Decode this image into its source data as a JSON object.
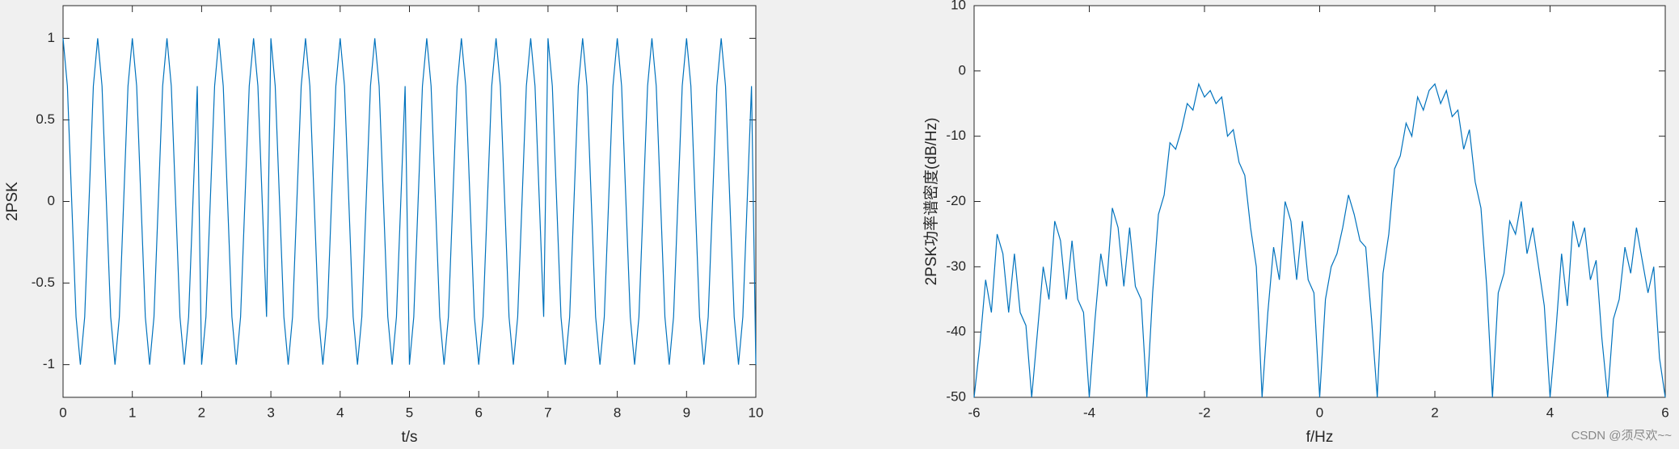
{
  "chart_data": [
    {
      "type": "line",
      "xlabel": "t/s",
      "ylabel": "2PSK",
      "color": "#0072bd",
      "xlim": [
        0,
        10
      ],
      "ylim": [
        -1.2,
        1.2
      ],
      "xticks": [
        0,
        1,
        2,
        3,
        4,
        5,
        6,
        7,
        8,
        9,
        10
      ],
      "yticks": [
        -1,
        -0.5,
        0,
        0.5,
        1
      ],
      "x": [
        0,
        0.0625,
        0.125,
        0.1875,
        0.25,
        0.3125,
        0.375,
        0.4375,
        0.5,
        0.5625,
        0.625,
        0.6875,
        0.75,
        0.8125,
        0.875,
        0.9375,
        1,
        1.0625,
        1.125,
        1.1875,
        1.25,
        1.3125,
        1.375,
        1.4375,
        1.5,
        1.5625,
        1.625,
        1.6875,
        1.75,
        1.8125,
        1.875,
        1.9375,
        2,
        2.0625,
        2.125,
        2.1875,
        2.25,
        2.3125,
        2.375,
        2.4375,
        2.5,
        2.5625,
        2.625,
        2.6875,
        2.75,
        2.8125,
        2.875,
        2.9375,
        3,
        3.0625,
        3.125,
        3.1875,
        3.25,
        3.3125,
        3.375,
        3.4375,
        3.5,
        3.5625,
        3.625,
        3.6875,
        3.75,
        3.8125,
        3.875,
        3.9375,
        4,
        4.0625,
        4.125,
        4.1875,
        4.25,
        4.3125,
        4.375,
        4.4375,
        4.5,
        4.5625,
        4.625,
        4.6875,
        4.75,
        4.8125,
        4.875,
        4.9375,
        5,
        5.0625,
        5.125,
        5.1875,
        5.25,
        5.3125,
        5.375,
        5.4375,
        5.5,
        5.5625,
        5.625,
        5.6875,
        5.75,
        5.8125,
        5.875,
        5.9375,
        6,
        6.0625,
        6.125,
        6.1875,
        6.25,
        6.3125,
        6.375,
        6.4375,
        6.5,
        6.5625,
        6.625,
        6.6875,
        6.75,
        6.8125,
        6.875,
        6.9375,
        7,
        7.0625,
        7.125,
        7.1875,
        7.25,
        7.3125,
        7.375,
        7.4375,
        7.5,
        7.5625,
        7.625,
        7.6875,
        7.75,
        7.8125,
        7.875,
        7.9375,
        8,
        8.0625,
        8.125,
        8.1875,
        8.25,
        8.3125,
        8.375,
        8.4375,
        8.5,
        8.5625,
        8.625,
        8.6875,
        8.75,
        8.8125,
        8.875,
        8.9375,
        9,
        9.0625,
        9.125,
        9.1875,
        9.25,
        9.3125,
        9.375,
        9.4375,
        9.5,
        9.5625,
        9.625,
        9.6875,
        9.75,
        9.8125,
        9.875,
        9.9375,
        10
      ],
      "values": [
        1,
        0.707,
        0,
        -0.707,
        -1,
        -0.707,
        0,
        0.707,
        1,
        0.707,
        0,
        -0.707,
        -1,
        -0.707,
        0,
        0.707,
        1,
        0.707,
        0,
        -0.707,
        -1,
        -0.707,
        0,
        0.707,
        1,
        0.707,
        0,
        -0.707,
        -1,
        -0.707,
        0,
        0.707,
        -1,
        -0.707,
        0,
        0.707,
        1,
        0.707,
        0,
        -0.707,
        -1,
        -0.707,
        0,
        0.707,
        1,
        0.707,
        0,
        -0.707,
        1,
        0.707,
        0,
        -0.707,
        -1,
        -0.707,
        0,
        0.707,
        1,
        0.707,
        0,
        -0.707,
        -1,
        -0.707,
        0,
        0.707,
        1,
        0.707,
        0,
        -0.707,
        -1,
        -0.707,
        0,
        0.707,
        1,
        0.707,
        0,
        -0.707,
        -1,
        -0.707,
        0,
        0.707,
        -1,
        -0.707,
        0,
        0.707,
        1,
        0.707,
        0,
        -0.707,
        -1,
        -0.707,
        0,
        0.707,
        1,
        0.707,
        0,
        -0.707,
        -1,
        -0.707,
        0,
        0.707,
        1,
        0.707,
        0,
        -0.707,
        -1,
        -0.707,
        0,
        0.707,
        1,
        0.707,
        0,
        -0.707,
        1,
        0.707,
        0,
        -0.707,
        -1,
        -0.707,
        0,
        0.707,
        1,
        0.707,
        0,
        -0.707,
        -1,
        -0.707,
        0,
        0.707,
        1,
        0.707,
        0,
        -0.707,
        -1,
        -0.707,
        0,
        0.707,
        1,
        0.707,
        0,
        -0.707,
        -1,
        -0.707,
        0,
        0.707,
        1,
        0.707,
        0,
        -0.707,
        -1,
        -0.707,
        0,
        0.707,
        1,
        0.707,
        0,
        -0.707,
        -1,
        -0.707,
        0,
        0.707,
        -1
      ]
    },
    {
      "type": "line",
      "xlabel": "f/Hz",
      "ylabel": "2PSK功率谱密度(dB/Hz)",
      "color": "#0072bd",
      "xlim": [
        -6,
        6
      ],
      "ylim": [
        -50,
        10
      ],
      "xticks": [
        -6,
        -4,
        -2,
        0,
        2,
        4,
        6
      ],
      "yticks": [
        -50,
        -40,
        -30,
        -20,
        -10,
        0,
        10
      ],
      "x": [
        -6,
        -5.9,
        -5.8,
        -5.7,
        -5.6,
        -5.5,
        -5.4,
        -5.3,
        -5.2,
        -5.1,
        -5,
        -4.9,
        -4.8,
        -4.7,
        -4.6,
        -4.5,
        -4.4,
        -4.3,
        -4.2,
        -4.1,
        -4,
        -3.9,
        -3.8,
        -3.7,
        -3.6,
        -3.5,
        -3.4,
        -3.3,
        -3.2,
        -3.1,
        -3,
        -2.9,
        -2.8,
        -2.7,
        -2.6,
        -2.5,
        -2.4,
        -2.3,
        -2.2,
        -2.1,
        -2,
        -1.9,
        -1.8,
        -1.7,
        -1.6,
        -1.5,
        -1.4,
        -1.3,
        -1.2,
        -1.1,
        -1,
        -0.9,
        -0.8,
        -0.7,
        -0.6,
        -0.5,
        -0.4,
        -0.3,
        -0.2,
        -0.1,
        0,
        0.1,
        0.2,
        0.3,
        0.4,
        0.5,
        0.6,
        0.7,
        0.8,
        0.9,
        1,
        1.1,
        1.2,
        1.3,
        1.4,
        1.5,
        1.6,
        1.7,
        1.8,
        1.9,
        2,
        2.1,
        2.2,
        2.3,
        2.4,
        2.5,
        2.6,
        2.7,
        2.8,
        2.9,
        3,
        3.1,
        3.2,
        3.3,
        3.4,
        3.5,
        3.6,
        3.7,
        3.8,
        3.9,
        4,
        4.1,
        4.2,
        4.3,
        4.4,
        4.5,
        4.6,
        4.7,
        4.8,
        4.9,
        5,
        5.1,
        5.2,
        5.3,
        5.4,
        5.5,
        5.6,
        5.7,
        5.8,
        5.9,
        6
      ],
      "values": [
        -50,
        -42,
        -32,
        -37,
        -25,
        -28,
        -37,
        -28,
        -37,
        -39,
        -50,
        -40,
        -30,
        -35,
        -23,
        -26,
        -35,
        -26,
        -35,
        -37,
        -50,
        -38,
        -28,
        -33,
        -21,
        -24,
        -33,
        -24,
        -33,
        -35,
        -50,
        -34,
        -22,
        -19,
        -11,
        -12,
        -9,
        -5,
        -6,
        -2,
        -4,
        -3,
        -5,
        -4,
        -10,
        -9,
        -14,
        -16,
        -24,
        -30,
        -50,
        -37,
        -27,
        -32,
        -20,
        -23,
        -32,
        -23,
        -32,
        -34,
        -50,
        -35,
        -30,
        -28,
        -24,
        -19,
        -22,
        -26,
        -27,
        -38,
        -50,
        -31,
        -25,
        -15,
        -13,
        -8,
        -10,
        -4,
        -6,
        -3,
        -2,
        -5,
        -3,
        -7,
        -6,
        -12,
        -9,
        -17,
        -21,
        -33,
        -50,
        -34,
        -31,
        -23,
        -25,
        -20,
        -28,
        -24,
        -30,
        -36,
        -50,
        -40,
        -28,
        -36,
        -23,
        -27,
        -24,
        -32,
        -29,
        -41,
        -50,
        -38,
        -35,
        -27,
        -31,
        -24,
        -29,
        -34,
        -30,
        -44,
        -50
      ]
    }
  ],
  "watermark": "CSDN @须尽欢~~"
}
